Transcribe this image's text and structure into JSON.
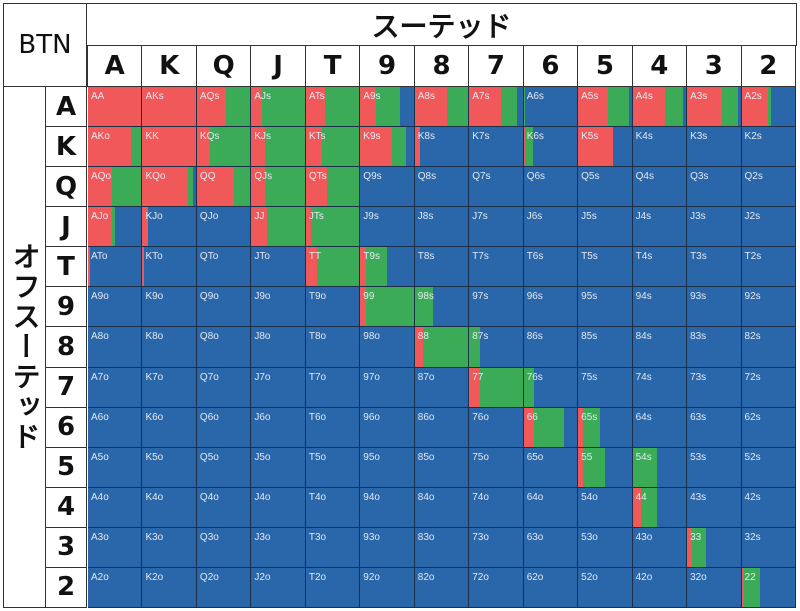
{
  "title": "BTN",
  "suited_title": "スーテッド",
  "offsuit_title": "オフスーテッド",
  "colors": {
    "raise": "#f0585a",
    "call": "#3bab57",
    "fold": "#2a66aa"
  },
  "chart_data": {
    "type": "heatmap",
    "title": "BTN",
    "xlabel": "スーテッド",
    "ylabel": "オフスーテッド",
    "ranks": [
      "A",
      "K",
      "Q",
      "J",
      "T",
      "9",
      "8",
      "7",
      "6",
      "5",
      "4",
      "3",
      "2"
    ],
    "legend": [
      "red",
      "green",
      "blue (remainder)"
    ],
    "cells": [
      [
        [
          "AA",
          1,
          0
        ],
        [
          "AKs",
          1,
          0
        ],
        [
          "AQs",
          0.55,
          0.45
        ],
        [
          "AJs",
          0.2,
          0.8
        ],
        [
          "ATs",
          0.35,
          0.65
        ],
        [
          "A9s",
          0.3,
          0.45
        ],
        [
          "A8s",
          0.6,
          0.4
        ],
        [
          "A7s",
          0.6,
          0.3
        ],
        [
          "A6s",
          0,
          0.03
        ],
        [
          "A5s",
          0.55,
          0.4
        ],
        [
          "A4s",
          0.6,
          0.35
        ],
        [
          "A3s",
          0.65,
          0.3
        ],
        [
          "A2s",
          0.5,
          0.05
        ]
      ],
      [
        [
          "AKo",
          0.8,
          0.2
        ],
        [
          "KK",
          1,
          0
        ],
        [
          "KQs",
          0.25,
          0.75
        ],
        [
          "KJs",
          0.25,
          0.75
        ],
        [
          "KTs",
          0.3,
          0.7
        ],
        [
          "K9s",
          0.6,
          0.25
        ],
        [
          "K8s",
          0.1,
          0
        ],
        [
          "K7s",
          0,
          0
        ],
        [
          "K6s",
          0.02,
          0.15
        ],
        [
          "K5s",
          0.65,
          0
        ],
        [
          "K4s",
          0,
          0
        ],
        [
          "K3s",
          0,
          0
        ],
        [
          "K2s",
          0,
          0
        ]
      ],
      [
        [
          "AQo",
          0.45,
          0.55
        ],
        [
          "KQo",
          0.85,
          0.1
        ],
        [
          "QQ",
          0.7,
          0.3
        ],
        [
          "QJs",
          0.25,
          0.75
        ],
        [
          "QTs",
          0.4,
          0.6
        ],
        [
          "Q9s",
          0,
          0
        ],
        [
          "Q8s",
          0,
          0
        ],
        [
          "Q7s",
          0,
          0
        ],
        [
          "Q6s",
          0,
          0
        ],
        [
          "Q5s",
          0,
          0
        ],
        [
          "Q4s",
          0,
          0
        ],
        [
          "Q3s",
          0,
          0
        ],
        [
          "Q2s",
          0,
          0
        ]
      ],
      [
        [
          "AJo",
          0.45,
          0.05
        ],
        [
          "KJo",
          0.1,
          0
        ],
        [
          "QJo",
          0,
          0
        ],
        [
          "JJ",
          0.3,
          0.7
        ],
        [
          "JTs",
          0.1,
          0.9
        ],
        [
          "J9s",
          0,
          0
        ],
        [
          "J8s",
          0,
          0
        ],
        [
          "J7s",
          0,
          0
        ],
        [
          "J6s",
          0,
          0
        ],
        [
          "J5s",
          0,
          0
        ],
        [
          "J4s",
          0,
          0
        ],
        [
          "J3s",
          0,
          0
        ],
        [
          "J2s",
          0,
          0
        ]
      ],
      [
        [
          "ATo",
          0.03,
          0
        ],
        [
          "KTo",
          0.03,
          0
        ],
        [
          "QTo",
          0,
          0
        ],
        [
          "JTo",
          0,
          0
        ],
        [
          "TT",
          0.2,
          0.8
        ],
        [
          "T9s",
          0.1,
          0.4
        ],
        [
          "T8s",
          0,
          0
        ],
        [
          "T7s",
          0,
          0
        ],
        [
          "T6s",
          0,
          0
        ],
        [
          "T5s",
          0,
          0
        ],
        [
          "T4s",
          0,
          0
        ],
        [
          "T3s",
          0,
          0
        ],
        [
          "T2s",
          0,
          0
        ]
      ],
      [
        [
          "A9o",
          0,
          0
        ],
        [
          "K9o",
          0,
          0
        ],
        [
          "Q9o",
          0,
          0
        ],
        [
          "J9o",
          0,
          0
        ],
        [
          "T9o",
          0,
          0
        ],
        [
          "99",
          0.1,
          0.9
        ],
        [
          "98s",
          0,
          0.35
        ],
        [
          "97s",
          0,
          0
        ],
        [
          "96s",
          0,
          0
        ],
        [
          "95s",
          0,
          0
        ],
        [
          "94s",
          0,
          0
        ],
        [
          "93s",
          0,
          0
        ],
        [
          "92s",
          0,
          0
        ]
      ],
      [
        [
          "A8o",
          0,
          0
        ],
        [
          "K8o",
          0,
          0
        ],
        [
          "Q8o",
          0,
          0
        ],
        [
          "J8o",
          0,
          0
        ],
        [
          "T8o",
          0,
          0
        ],
        [
          "98o",
          0,
          0
        ],
        [
          "88",
          0.15,
          0.85
        ],
        [
          "87s",
          0,
          0.2
        ],
        [
          "86s",
          0,
          0
        ],
        [
          "85s",
          0,
          0
        ],
        [
          "84s",
          0,
          0
        ],
        [
          "83s",
          0,
          0
        ],
        [
          "82s",
          0,
          0
        ]
      ],
      [
        [
          "A7o",
          0,
          0
        ],
        [
          "K7o",
          0,
          0
        ],
        [
          "Q7o",
          0,
          0
        ],
        [
          "J7o",
          0,
          0
        ],
        [
          "T7o",
          0,
          0
        ],
        [
          "97o",
          0,
          0
        ],
        [
          "87o",
          0,
          0
        ],
        [
          "77",
          0.2,
          0.8
        ],
        [
          "76s",
          0,
          0.2
        ],
        [
          "75s",
          0,
          0
        ],
        [
          "74s",
          0,
          0
        ],
        [
          "73s",
          0,
          0
        ],
        [
          "72s",
          0,
          0
        ]
      ],
      [
        [
          "A6o",
          0,
          0
        ],
        [
          "K6o",
          0,
          0
        ],
        [
          "Q6o",
          0,
          0
        ],
        [
          "J6o",
          0,
          0
        ],
        [
          "T6o",
          0,
          0
        ],
        [
          "96o",
          0,
          0
        ],
        [
          "86o",
          0,
          0
        ],
        [
          "76o",
          0,
          0
        ],
        [
          "66",
          0.2,
          0.55
        ],
        [
          "65s",
          0.1,
          0.3
        ],
        [
          "64s",
          0,
          0
        ],
        [
          "63s",
          0,
          0
        ],
        [
          "62s",
          0,
          0
        ]
      ],
      [
        [
          "A5o",
          0,
          0
        ],
        [
          "K5o",
          0,
          0
        ],
        [
          "Q5o",
          0,
          0
        ],
        [
          "J5o",
          0,
          0
        ],
        [
          "T5o",
          0,
          0
        ],
        [
          "95o",
          0,
          0
        ],
        [
          "85o",
          0,
          0
        ],
        [
          "75o",
          0,
          0
        ],
        [
          "65o",
          0,
          0
        ],
        [
          "55",
          0.1,
          0.4
        ],
        [
          "54s",
          0,
          0.45
        ],
        [
          "53s",
          0,
          0
        ],
        [
          "52s",
          0,
          0
        ]
      ],
      [
        [
          "A4o",
          0,
          0
        ],
        [
          "K4o",
          0,
          0
        ],
        [
          "Q4o",
          0,
          0
        ],
        [
          "J4o",
          0,
          0
        ],
        [
          "T4o",
          0,
          0
        ],
        [
          "94o",
          0,
          0
        ],
        [
          "84o",
          0,
          0
        ],
        [
          "74o",
          0,
          0
        ],
        [
          "64o",
          0,
          0
        ],
        [
          "54o",
          0,
          0
        ],
        [
          "44",
          0.15,
          0.3
        ],
        [
          "43s",
          0,
          0
        ],
        [
          "42s",
          0,
          0
        ]
      ],
      [
        [
          "A3o",
          0,
          0
        ],
        [
          "K3o",
          0,
          0
        ],
        [
          "Q3o",
          0,
          0
        ],
        [
          "J3o",
          0,
          0
        ],
        [
          "T3o",
          0,
          0
        ],
        [
          "93o",
          0,
          0
        ],
        [
          "83o",
          0,
          0
        ],
        [
          "73o",
          0,
          0
        ],
        [
          "63o",
          0,
          0
        ],
        [
          "53o",
          0,
          0
        ],
        [
          "43o",
          0,
          0
        ],
        [
          "33",
          0.1,
          0.25
        ],
        [
          "32s",
          0,
          0
        ]
      ],
      [
        [
          "A2o",
          0,
          0
        ],
        [
          "K2o",
          0,
          0
        ],
        [
          "Q2o",
          0,
          0
        ],
        [
          "J2o",
          0,
          0
        ],
        [
          "T2o",
          0,
          0
        ],
        [
          "92o",
          0,
          0
        ],
        [
          "82o",
          0,
          0
        ],
        [
          "72o",
          0,
          0
        ],
        [
          "62o",
          0,
          0
        ],
        [
          "52o",
          0,
          0
        ],
        [
          "42o",
          0,
          0
        ],
        [
          "32o",
          0,
          0
        ],
        [
          "22",
          0.05,
          0.3
        ]
      ]
    ]
  }
}
